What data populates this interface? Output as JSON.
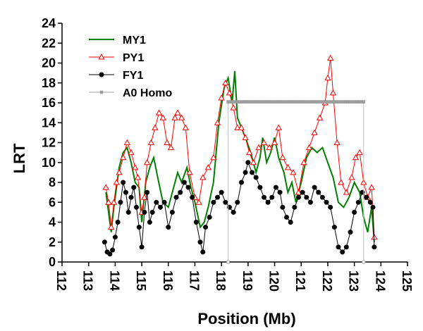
{
  "chart_data": {
    "type": "line",
    "xlabel": "Position (Mb)",
    "ylabel": "LRT",
    "xlim": [
      112,
      125
    ],
    "ylim": [
      0,
      24
    ],
    "x_ticks": [
      "112",
      "113",
      "114",
      "115",
      "116",
      "117",
      "118",
      "119",
      "120",
      "121",
      "122",
      "123",
      "124",
      "125"
    ],
    "y_ticks": [
      "0",
      "2",
      "4",
      "6",
      "8",
      "10",
      "12",
      "14",
      "16",
      "18",
      "20",
      "22",
      "24"
    ],
    "legend_position": "top-left",
    "grid": false,
    "series": [
      {
        "name": "MY1",
        "color": "#008000",
        "marker": "none",
        "points": [
          [
            113.65,
            7.0
          ],
          [
            113.75,
            5.0
          ],
          [
            113.85,
            3.0
          ],
          [
            113.95,
            5.5
          ],
          [
            114.05,
            7.5
          ],
          [
            114.15,
            9.5
          ],
          [
            114.3,
            11.0
          ],
          [
            114.45,
            11.5
          ],
          [
            114.6,
            10.0
          ],
          [
            114.75,
            8.0
          ],
          [
            114.9,
            7.5
          ],
          [
            115.0,
            4.0
          ],
          [
            115.15,
            8.0
          ],
          [
            115.3,
            9.5
          ],
          [
            115.45,
            10.5
          ],
          [
            115.6,
            8.5
          ],
          [
            115.8,
            6.0
          ],
          [
            116.0,
            5.5
          ],
          [
            116.2,
            7.5
          ],
          [
            116.35,
            9.0
          ],
          [
            116.5,
            8.0
          ],
          [
            116.7,
            9.5
          ],
          [
            116.85,
            7.5
          ],
          [
            117.0,
            6.0
          ],
          [
            117.2,
            3.5
          ],
          [
            117.35,
            4.0
          ],
          [
            117.5,
            5.5
          ],
          [
            117.7,
            8.0
          ],
          [
            117.9,
            14.0
          ],
          [
            118.1,
            17.5
          ],
          [
            118.25,
            18.5
          ],
          [
            118.4,
            16.0
          ],
          [
            118.5,
            19.2
          ],
          [
            118.6,
            14.5
          ],
          [
            118.75,
            13.5
          ],
          [
            118.9,
            12.5
          ],
          [
            119.1,
            11.0
          ],
          [
            119.3,
            9.0
          ],
          [
            119.45,
            10.5
          ],
          [
            119.55,
            12.5
          ],
          [
            119.7,
            10.0
          ],
          [
            119.85,
            11.0
          ],
          [
            120.0,
            12.5
          ],
          [
            120.15,
            10.5
          ],
          [
            120.35,
            9.0
          ],
          [
            120.5,
            7.0
          ],
          [
            120.65,
            8.0
          ],
          [
            120.8,
            6.0
          ],
          [
            121.0,
            8.0
          ],
          [
            121.2,
            10.5
          ],
          [
            121.4,
            11.5
          ],
          [
            121.6,
            11.0
          ],
          [
            121.8,
            11.5
          ],
          [
            122.0,
            10.0
          ],
          [
            122.2,
            8.5
          ],
          [
            122.4,
            6.0
          ],
          [
            122.6,
            5.5
          ],
          [
            122.8,
            6.5
          ],
          [
            123.0,
            8.0
          ],
          [
            123.2,
            7.0
          ],
          [
            123.35,
            4.5
          ],
          [
            123.5,
            3.0
          ],
          [
            123.65,
            5.5
          ],
          [
            123.75,
            2.0
          ]
        ]
      },
      {
        "name": "PY1",
        "color": "#ff0000",
        "marker": "triangle",
        "points": [
          [
            113.65,
            7.5
          ],
          [
            113.75,
            6.0
          ],
          [
            113.85,
            3.5
          ],
          [
            113.95,
            6.0
          ],
          [
            114.05,
            8.0
          ],
          [
            114.15,
            9.0
          ],
          [
            114.3,
            10.5
          ],
          [
            114.45,
            12.0
          ],
          [
            114.6,
            11.0
          ],
          [
            114.75,
            9.5
          ],
          [
            114.85,
            8.5
          ],
          [
            115.0,
            5.0
          ],
          [
            115.1,
            6.5
          ],
          [
            115.2,
            10.0
          ],
          [
            115.35,
            12.0
          ],
          [
            115.5,
            13.5
          ],
          [
            115.65,
            15.0
          ],
          [
            115.8,
            14.5
          ],
          [
            115.95,
            12.0
          ],
          [
            116.1,
            11.5
          ],
          [
            116.25,
            14.5
          ],
          [
            116.35,
            15.0
          ],
          [
            116.5,
            14.5
          ],
          [
            116.65,
            13.5
          ],
          [
            116.8,
            9.0
          ],
          [
            117.0,
            6.5
          ],
          [
            117.15,
            6.0
          ],
          [
            117.3,
            8.5
          ],
          [
            117.5,
            9.5
          ],
          [
            117.7,
            10.5
          ],
          [
            117.85,
            14.0
          ],
          [
            118.0,
            16.5
          ],
          [
            118.15,
            18.0
          ],
          [
            118.3,
            17.0
          ],
          [
            118.45,
            15.5
          ],
          [
            118.6,
            13.5
          ],
          [
            118.75,
            13.5
          ],
          [
            118.9,
            12.5
          ],
          [
            119.05,
            11.0
          ],
          [
            119.2,
            10.0
          ],
          [
            119.4,
            11.5
          ],
          [
            119.6,
            12.0
          ],
          [
            119.8,
            11.5
          ],
          [
            120.0,
            12.0
          ],
          [
            120.15,
            13.5
          ],
          [
            120.3,
            10.5
          ],
          [
            120.5,
            9.5
          ],
          [
            120.7,
            9.0
          ],
          [
            120.9,
            7.0
          ],
          [
            121.1,
            10.0
          ],
          [
            121.3,
            11.5
          ],
          [
            121.5,
            13.0
          ],
          [
            121.7,
            14.5
          ],
          [
            121.9,
            16.0
          ],
          [
            122.0,
            18.5
          ],
          [
            122.1,
            20.5
          ],
          [
            122.2,
            17.0
          ],
          [
            122.35,
            12.0
          ],
          [
            122.5,
            8.0
          ],
          [
            122.7,
            7.0
          ],
          [
            122.9,
            8.5
          ],
          [
            123.05,
            10.5
          ],
          [
            123.2,
            11.0
          ],
          [
            123.35,
            8.0
          ],
          [
            123.5,
            6.5
          ],
          [
            123.65,
            7.5
          ],
          [
            123.75,
            2.5
          ]
        ]
      },
      {
        "name": "FY1",
        "color": "#000000",
        "marker": "circle",
        "points": [
          [
            113.6,
            2.0
          ],
          [
            113.7,
            1.0
          ],
          [
            113.8,
            0.8
          ],
          [
            113.9,
            1.2
          ],
          [
            114.0,
            2.5
          ],
          [
            114.1,
            4.0
          ],
          [
            114.2,
            6.0
          ],
          [
            114.3,
            8.0
          ],
          [
            114.4,
            7.0
          ],
          [
            114.5,
            5.0
          ],
          [
            114.6,
            6.5
          ],
          [
            114.7,
            7.5
          ],
          [
            114.8,
            5.5
          ],
          [
            114.9,
            3.5
          ],
          [
            115.0,
            1.5
          ],
          [
            115.1,
            5.0
          ],
          [
            115.2,
            7.0
          ],
          [
            115.3,
            4.0
          ],
          [
            115.4,
            5.0
          ],
          [
            115.55,
            6.0
          ],
          [
            115.7,
            5.5
          ],
          [
            115.85,
            6.0
          ],
          [
            116.0,
            3.5
          ],
          [
            116.15,
            5.0
          ],
          [
            116.3,
            6.5
          ],
          [
            116.45,
            7.0
          ],
          [
            116.6,
            8.0
          ],
          [
            116.75,
            7.5
          ],
          [
            116.9,
            6.5
          ],
          [
            117.05,
            4.0
          ],
          [
            117.2,
            2.0
          ],
          [
            117.3,
            1.0
          ],
          [
            117.4,
            3.5
          ],
          [
            117.55,
            4.5
          ],
          [
            117.7,
            6.0
          ],
          [
            117.85,
            6.5
          ],
          [
            118.0,
            7.0
          ],
          [
            118.15,
            6.0
          ],
          [
            118.3,
            5.5
          ],
          [
            118.45,
            5.0
          ],
          [
            118.6,
            6.0
          ],
          [
            118.75,
            8.0
          ],
          [
            118.9,
            9.0
          ],
          [
            119.0,
            10.0
          ],
          [
            119.15,
            9.0
          ],
          [
            119.3,
            8.5
          ],
          [
            119.45,
            7.5
          ],
          [
            119.6,
            6.5
          ],
          [
            119.75,
            6.0
          ],
          [
            119.9,
            6.5
          ],
          [
            120.05,
            7.5
          ],
          [
            120.2,
            7.0
          ],
          [
            120.3,
            5.5
          ],
          [
            120.45,
            4.5
          ],
          [
            120.6,
            4.0
          ],
          [
            120.75,
            5.5
          ],
          [
            120.9,
            6.5
          ],
          [
            121.05,
            7.0
          ],
          [
            121.2,
            6.5
          ],
          [
            121.35,
            6.0
          ],
          [
            121.5,
            7.5
          ],
          [
            121.65,
            7.0
          ],
          [
            121.8,
            6.5
          ],
          [
            121.95,
            6.0
          ],
          [
            122.1,
            5.5
          ],
          [
            122.25,
            3.5
          ],
          [
            122.4,
            1.5
          ],
          [
            122.55,
            1.0
          ],
          [
            122.7,
            1.5
          ],
          [
            122.85,
            3.0
          ],
          [
            123.0,
            5.0
          ],
          [
            123.15,
            6.0
          ],
          [
            123.3,
            7.0
          ],
          [
            123.45,
            6.5
          ],
          [
            123.6,
            6.0
          ],
          [
            123.7,
            5.5
          ],
          [
            123.75,
            1.5
          ]
        ]
      },
      {
        "name": "A0 Homo",
        "color": "#a0a0a0",
        "marker": "square",
        "y": 16.1,
        "x_start": 118.25,
        "x_end": 123.35
      }
    ]
  }
}
